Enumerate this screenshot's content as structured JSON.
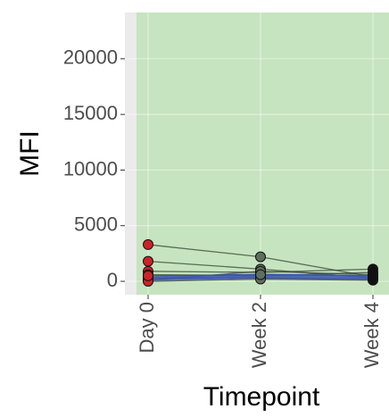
{
  "chart_data": {
    "type": "paired-line",
    "x_label": "Timepoint",
    "y_label": "MFI",
    "categories": [
      "Day 0",
      "Week 2",
      "Week 4"
    ],
    "point_colors": [
      "#cc2229",
      "#5f6f5f",
      "#111111"
    ],
    "line_color": "#3d4d3d",
    "ribbon_color": "#3a55b4",
    "panel_color": "#ebebeb",
    "highlight_color": "#c6e4bf",
    "grid": true,
    "ylim": [
      -1200,
      24160
    ],
    "yticks": [
      0,
      5000,
      10000,
      15000,
      20000
    ],
    "subjects": [
      {
        "values": [
          3300,
          2200,
          400
        ]
      },
      {
        "values": [
          1800,
          1100,
          300
        ]
      },
      {
        "values": [
          900,
          800,
          1100
        ]
      },
      {
        "values": [
          600,
          500,
          800
        ]
      },
      {
        "values": [
          300,
          300,
          200
        ]
      },
      {
        "values": [
          100,
          900,
          600
        ]
      },
      {
        "values": [
          0,
          200,
          100
        ]
      },
      {
        "values": [
          500,
          600,
          500
        ]
      }
    ],
    "ribbon": {
      "lower": [
        50,
        250,
        150
      ],
      "upper": [
        450,
        700,
        550
      ]
    }
  }
}
